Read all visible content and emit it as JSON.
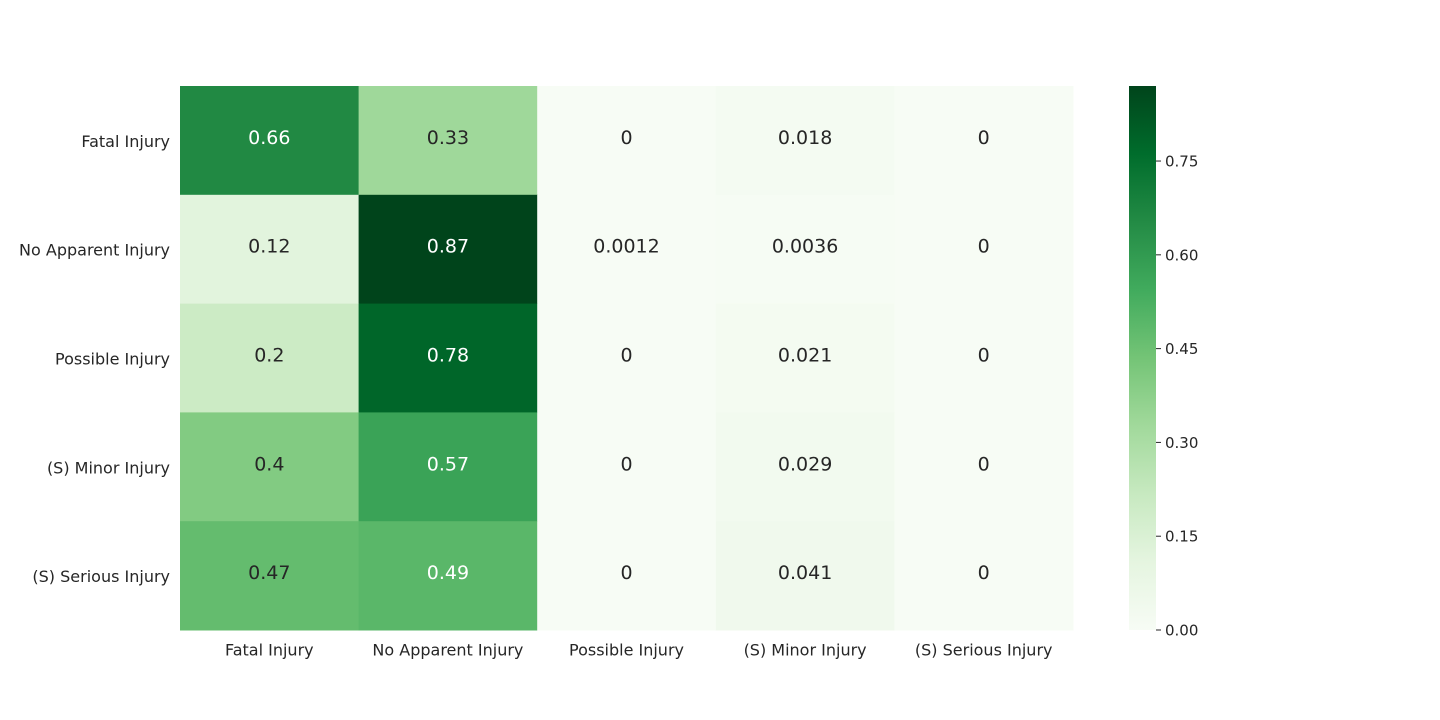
{
  "chart_data": {
    "type": "heatmap",
    "title": "",
    "xlabel": "",
    "ylabel": "",
    "x_categories": [
      "Fatal Injury",
      "No Apparent Injury",
      "Possible Injury",
      "(S) Minor Injury",
      "(S) Serious Injury"
    ],
    "y_categories": [
      "Fatal Injury",
      "No Apparent Injury",
      "Possible Injury",
      "(S) Minor Injury",
      "(S) Serious Injury"
    ],
    "values": [
      [
        0.66,
        0.33,
        0,
        0.018,
        0
      ],
      [
        0.12,
        0.87,
        0.0012,
        0.0036,
        0
      ],
      [
        0.2,
        0.78,
        0,
        0.021,
        0
      ],
      [
        0.4,
        0.57,
        0,
        0.029,
        0
      ],
      [
        0.47,
        0.49,
        0,
        0.041,
        0
      ]
    ],
    "cell_labels": [
      [
        "0.66",
        "0.33",
        "0",
        "0.018",
        "0"
      ],
      [
        "0.12",
        "0.87",
        "0.0012",
        "0.0036",
        "0"
      ],
      [
        "0.2",
        "0.78",
        "0",
        "0.021",
        "0"
      ],
      [
        "0.4",
        "0.57",
        "0",
        "0.029",
        "0"
      ],
      [
        "0.47",
        "0.49",
        "0",
        "0.041",
        "0"
      ]
    ],
    "colormap": "Greens",
    "colorbar": {
      "range": [
        0,
        0.87
      ],
      "ticks": [
        0,
        0.15,
        0.3,
        0.45,
        0.6,
        0.75
      ],
      "tick_labels": [
        "0.00",
        "0.15",
        "0.30",
        "0.45",
        "0.60",
        "0.75"
      ]
    },
    "grid": false
  }
}
